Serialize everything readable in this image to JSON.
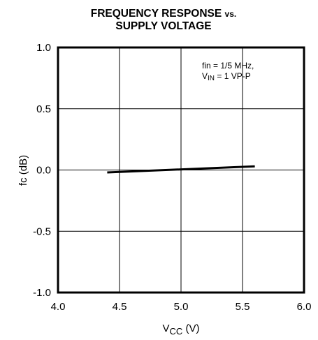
{
  "chart_data": {
    "type": "line",
    "title_line1_main": "FREQUENCY RESPONSE",
    "title_line1_small": "vs.",
    "title_line2": "SUPPLY VOLTAGE",
    "ylabel": "fc (dB)",
    "xlabel_main": "V",
    "xlabel_sub": "CC",
    "xlabel_unit": " (V)",
    "xlim": [
      4.0,
      6.0
    ],
    "ylim": [
      -1.0,
      1.0
    ],
    "x_ticks": [
      "4.0",
      "4.5",
      "5.0",
      "5.5",
      "6.0"
    ],
    "y_ticks": [
      "1.0",
      "0.5",
      "0.0",
      "-0.5",
      "-1.0"
    ],
    "grid": true,
    "annotation": {
      "line1": "fin = 1/5 MHz,",
      "line2_v": "V",
      "line2_sub": "IN",
      "line2_rest": " = 1 VP-P"
    },
    "series": [
      {
        "x": [
          4.4,
          5.6
        ],
        "y": [
          -0.02,
          0.03
        ]
      }
    ]
  }
}
